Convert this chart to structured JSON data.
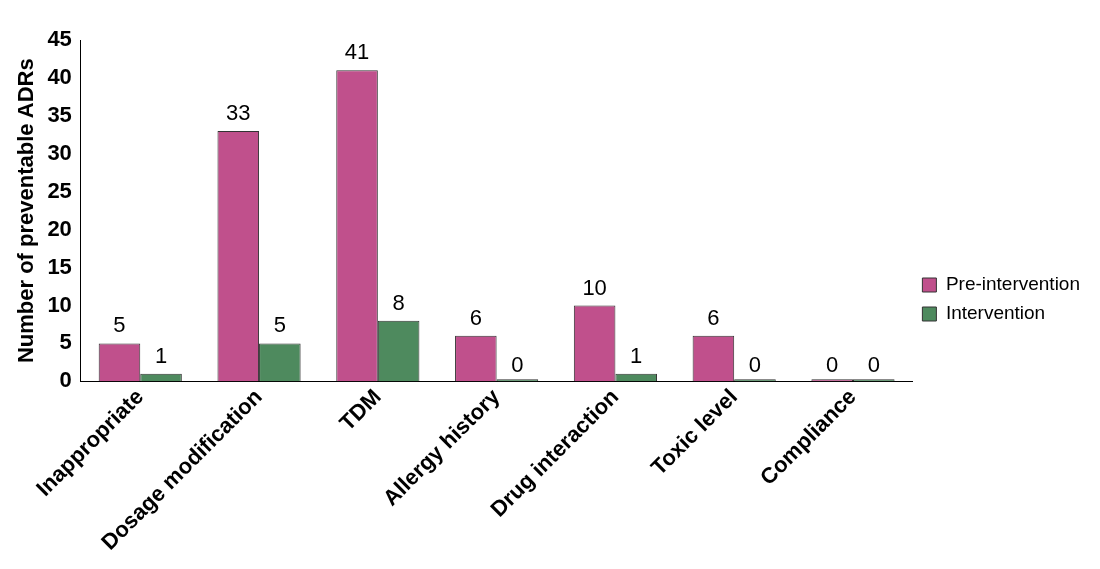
{
  "chart_data": {
    "type": "bar",
    "ylabel": "Number of preventable ADRs",
    "categories": [
      "Inappropriate",
      "Dosage modification",
      "TDM",
      "Allergy history",
      "Drug interaction",
      "Toxic level",
      "Compliance"
    ],
    "series": [
      {
        "name": "Pre-intervention",
        "color": "#c0508c",
        "values": [
          5,
          33,
          41,
          6,
          10,
          6,
          0
        ]
      },
      {
        "name": "Intervention",
        "color": "#4e8a5e",
        "values": [
          1,
          5,
          8,
          0,
          1,
          0,
          0
        ]
      }
    ],
    "ylim": [
      0,
      45
    ],
    "yticks": [
      0,
      5,
      10,
      15,
      20,
      25,
      30,
      35,
      40,
      45
    ],
    "grid": false,
    "legend": "right",
    "data_labels": true
  }
}
